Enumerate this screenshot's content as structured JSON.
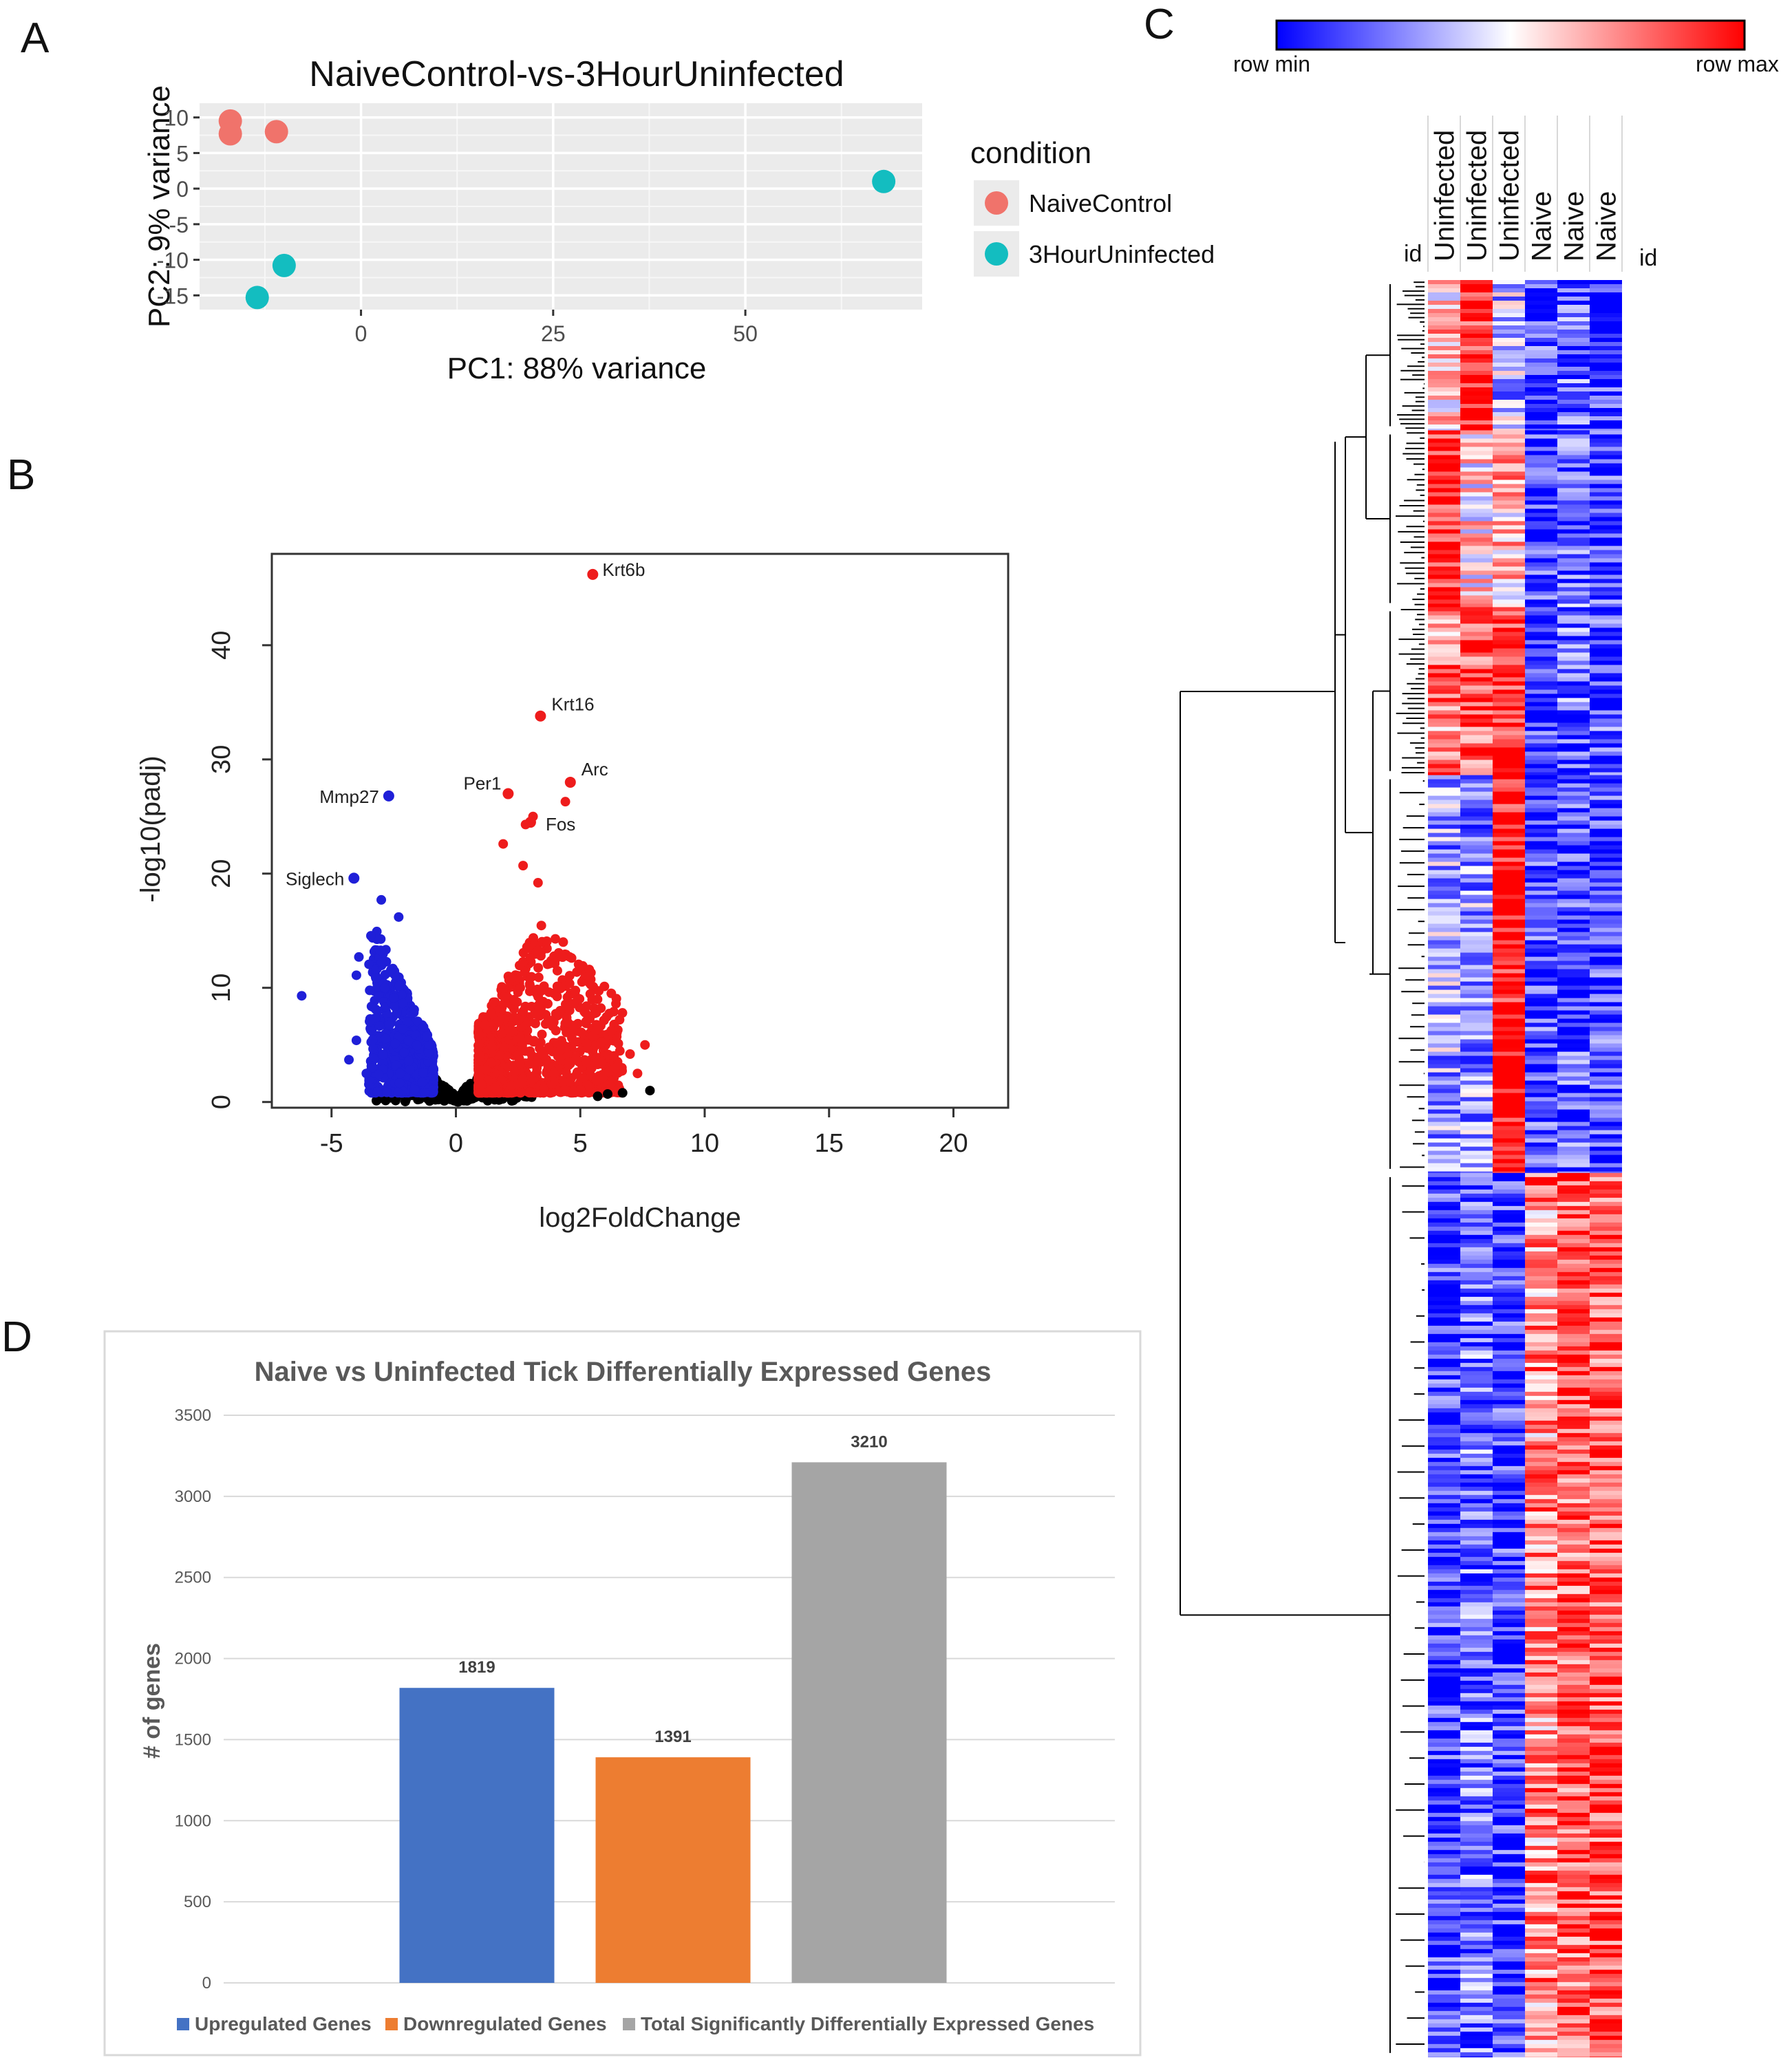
{
  "panels": {
    "a": "A",
    "b": "B",
    "c": "C",
    "d": "D"
  },
  "colors": {
    "naive": "#f0736b",
    "uninfected3h": "#13bdc0",
    "up": "#4472c4",
    "down": "#ed7d31",
    "total": "#a5a5a5",
    "heat_min": "#0000ff",
    "heat_max": "#ff0000",
    "volcano_up": "#ee1c1c",
    "volcano_down": "#1f1fd8",
    "volcano_ns": "#000000"
  },
  "chart_data": [
    {
      "id": "pca",
      "type": "scatter",
      "title": "NaiveControl-vs-3HourUninfected",
      "xlabel": "PC1: 88% variance",
      "ylabel": "PC2: 9% variance",
      "xlim": [
        -21,
        73
      ],
      "ylim": [
        -17,
        12
      ],
      "xticks": [
        0,
        25,
        50
      ],
      "yticks": [
        10,
        5,
        0,
        -5,
        -10,
        -15
      ],
      "xtick_labels": [
        "0",
        "25",
        "50"
      ],
      "ytick_labels": [
        "10",
        "5",
        "0",
        "-5",
        "-10",
        "-15"
      ],
      "legend_title": "condition",
      "series": [
        {
          "name": "NaiveControl",
          "points": [
            [
              -17,
              9.5
            ],
            [
              -17,
              7.7
            ],
            [
              -11,
              8.0
            ]
          ]
        },
        {
          "name": "3HourUninfected",
          "points": [
            [
              68,
              1.0
            ],
            [
              -10,
              -10.8
            ],
            [
              -13.5,
              -15.3
            ]
          ]
        }
      ]
    },
    {
      "id": "volcano",
      "type": "scatter",
      "xlabel": "log2FoldChange",
      "ylabel": "-log10(padj)",
      "xlim": [
        -7.4,
        22.2
      ],
      "ylim": [
        -0.5,
        48
      ],
      "xticks": [
        -5,
        0,
        5,
        10,
        15,
        20
      ],
      "xtick_labels": [
        "-5",
        "0",
        "5",
        "10",
        "15",
        "20"
      ],
      "yticks": [
        0,
        10,
        20,
        30,
        40
      ],
      "ytick_labels": [
        "0",
        "10",
        "20",
        "30",
        "40"
      ],
      "annotations": [
        {
          "label": "Krt6b",
          "x": 5.5,
          "y": 46.2
        },
        {
          "label": "Krt16",
          "x": 3.4,
          "y": 33.8
        },
        {
          "label": "Arc",
          "x": 4.6,
          "y": 28.0
        },
        {
          "label": "Per1",
          "x": 2.1,
          "y": 27.0
        },
        {
          "label": "Fos",
          "x": 3.0,
          "y": 24.5
        },
        {
          "label": "Mmp27",
          "x": -2.7,
          "y": 26.8
        },
        {
          "label": "Siglech",
          "x": -4.1,
          "y": 19.6
        }
      ],
      "extra_points": [
        [
          -6.2,
          9.3
        ],
        [
          2.8,
          24.3
        ],
        [
          3.1,
          25.0
        ],
        [
          4.4,
          26.3
        ],
        [
          1.9,
          22.6
        ],
        [
          2.7,
          20.7
        ],
        [
          3.3,
          19.2
        ],
        [
          7.6,
          5.0
        ],
        [
          7.0,
          4.2
        ],
        [
          6.4,
          3.0
        ],
        [
          5.9,
          2.1
        ],
        [
          7.3,
          2.5
        ],
        [
          6.1,
          0.7
        ],
        [
          7.8,
          1.0
        ],
        [
          6.7,
          0.8
        ],
        [
          5.7,
          0.5
        ],
        [
          -4.0,
          5.4
        ],
        [
          -4.3,
          3.7
        ],
        [
          -3.6,
          2.5
        ],
        [
          -3.0,
          17.7
        ],
        [
          -2.3,
          16.2
        ],
        [
          -3.9,
          12.7
        ],
        [
          -4.0,
          11.1
        ]
      ]
    },
    {
      "id": "heatmap",
      "type": "heatmap",
      "legend_min": "row min",
      "legend_max": "row max",
      "columns": [
        "Uninfected",
        "Uninfected",
        "Uninfected",
        "Naive",
        "Naive",
        "Naive"
      ],
      "row_label_left": "id",
      "row_label_right": "id",
      "blocks": [
        {
          "frac": 0.085,
          "values": [
            0.6,
            0.95,
            0.35,
            0.12,
            0.18,
            0.1
          ]
        },
        {
          "frac": 0.1,
          "values": [
            0.95,
            0.55,
            0.62,
            0.1,
            0.2,
            0.12
          ]
        },
        {
          "frac": 0.095,
          "values": [
            0.75,
            0.85,
            0.95,
            0.1,
            0.2,
            0.14
          ]
        },
        {
          "frac": 0.225,
          "values": [
            0.32,
            0.28,
            0.98,
            0.12,
            0.15,
            0.12
          ]
        },
        {
          "frac": 0.5,
          "values": [
            0.1,
            0.22,
            0.1,
            0.72,
            0.82,
            0.85
          ]
        }
      ]
    },
    {
      "id": "bars",
      "type": "bar",
      "title": "Naive vs Uninfected Tick Differentially Expressed Genes",
      "ylabel": "# of genes",
      "ylim": [
        0,
        3500
      ],
      "yticks": [
        0,
        500,
        1000,
        1500,
        2000,
        2500,
        3000,
        3500
      ],
      "ytick_labels": [
        "0",
        "500",
        "1000",
        "1500",
        "2000",
        "2500",
        "3000",
        "3500"
      ],
      "categories": [
        "Upregulated Genes",
        "Downregulated Genes",
        "Total Significantly Differentially Expressed Genes"
      ],
      "values": [
        1819,
        1391,
        3210
      ],
      "value_labels": [
        "1819",
        "1391",
        "3210"
      ]
    }
  ]
}
